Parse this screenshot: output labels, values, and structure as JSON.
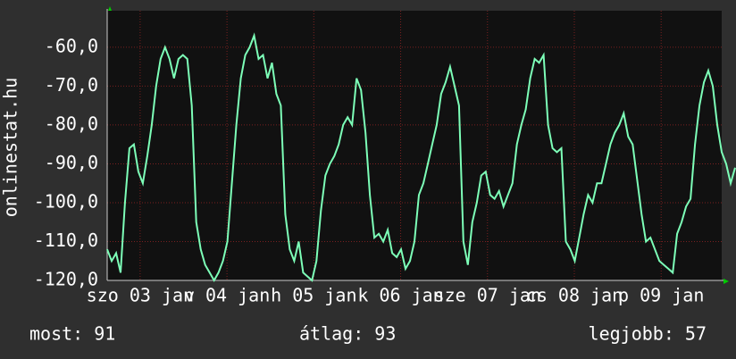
{
  "chart_data": {
    "type": "line",
    "y_label": "onlinestat.hu",
    "color": "#7dffb8",
    "values": [
      -112,
      -115,
      -113,
      -118,
      -100,
      -86,
      -85,
      -92,
      -95,
      -88,
      -80,
      -70,
      -63,
      -60,
      -63,
      -68,
      -63,
      -62,
      -63,
      -75,
      -105,
      -112,
      -116,
      -118,
      -120,
      -118,
      -115,
      -110,
      -95,
      -80,
      -68,
      -62,
      -60,
      -57,
      -63,
      -62,
      -68,
      -64,
      -72,
      -75,
      -103,
      -112,
      -115,
      -110,
      -118,
      -119,
      -120,
      -115,
      -102,
      -93,
      -90,
      -88,
      -85,
      -80,
      -78,
      -80,
      -68,
      -71,
      -82,
      -98,
      -109,
      -108,
      -110,
      -107,
      -113,
      -114,
      -112,
      -117,
      -115,
      -110,
      -98,
      -95,
      -90,
      -85,
      -80,
      -72,
      -69,
      -65,
      -70,
      -75,
      -110,
      -116,
      -105,
      -100,
      -93,
      -92,
      -98,
      -99,
      -97,
      -101,
      -98,
      -95,
      -85,
      -80,
      -76,
      -68,
      -63,
      -64,
      -62,
      -80,
      -86,
      -87,
      -86,
      -110,
      -112,
      -115,
      -109,
      -103,
      -98,
      -100,
      -95,
      -95,
      -90,
      -85,
      -82,
      -80,
      -77,
      -83,
      -85,
      -94,
      -103,
      -110,
      -109,
      -112,
      -115,
      -116,
      -117,
      -118,
      -108,
      -105,
      -101,
      -99,
      -85,
      -75,
      -69,
      -66,
      -70,
      -80,
      -87,
      -90,
      -95,
      -91
    ],
    "xlim": [
      0,
      138
    ],
    "xticks": [
      {
        "value": 7.4,
        "label": "szo 03 jan"
      },
      {
        "value": 26.9,
        "label": "v 04 jan"
      },
      {
        "value": 46.4,
        "label": "h 05 jan"
      },
      {
        "value": 65.9,
        "label": "k 06 jan"
      },
      {
        "value": 85.4,
        "label": "sze 07 jan"
      },
      {
        "value": 104.9,
        "label": "cs 08 jan"
      },
      {
        "value": 124.4,
        "label": "p 09 jan"
      }
    ],
    "ylim": [
      -120,
      -50.6
    ],
    "yticks": [
      {
        "value": -120,
        "label": "-120,0"
      },
      {
        "value": -110,
        "label": "-110,0"
      },
      {
        "value": -100,
        "label": "-100,0"
      },
      {
        "value": -90,
        "label": "-90,0"
      },
      {
        "value": -80,
        "label": "-80,0"
      },
      {
        "value": -70,
        "label": "-70,0"
      },
      {
        "value": -60,
        "label": "-60,0"
      }
    ],
    "grid": true,
    "footer": {
      "current": "most: 91",
      "average": "átlag: 93",
      "best": "legjobb: 57"
    }
  }
}
